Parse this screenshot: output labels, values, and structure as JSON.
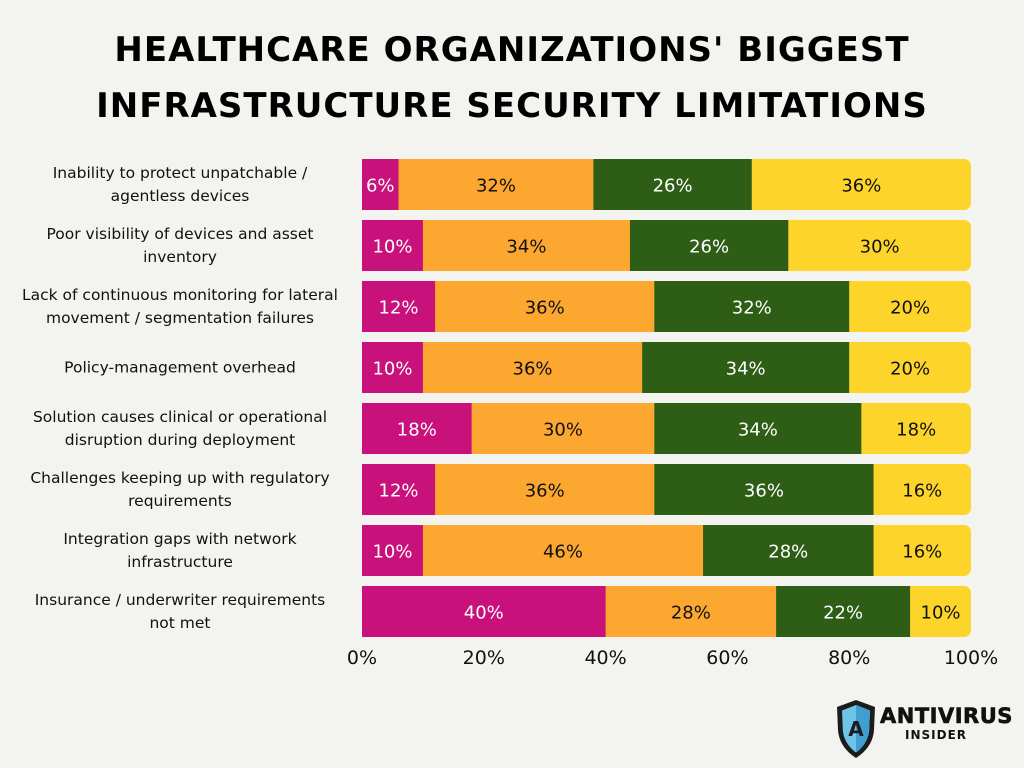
{
  "title": {
    "line1": "HEALTHCARE ORGANIZATIONS' BIGGEST",
    "line2": "INFRASTRUCTURE SECURITY LIMITATIONS"
  },
  "chart_data": {
    "type": "bar",
    "orientation": "horizontal",
    "stacked": true,
    "categories": [
      [
        "Inability to protect unpatchable /",
        "agentless devices"
      ],
      [
        "Poor visibility of devices and asset",
        "inventory"
      ],
      [
        "Lack of continuous monitoring for lateral",
        "movement / segmentation failures"
      ],
      [
        "Policy-management overhead"
      ],
      [
        "Solution causes clinical or operational",
        "disruption during deployment"
      ],
      [
        "Challenges keeping up with regulatory",
        "requirements"
      ],
      [
        "Integration gaps with network",
        "infrastructure"
      ],
      [
        "Insurance / underwriter requirements",
        "not met"
      ]
    ],
    "series": [
      {
        "values": [
          6,
          10,
          12,
          10,
          18,
          12,
          10,
          40
        ],
        "color": "#c8117a",
        "label_color": "#ffffff"
      },
      {
        "values": [
          32,
          34,
          36,
          36,
          30,
          36,
          46,
          28
        ],
        "color": "#fba730",
        "label_color": "#111111"
      },
      {
        "values": [
          26,
          26,
          32,
          34,
          34,
          36,
          28,
          22
        ],
        "color": "#2e5e16",
        "label_color": "#ffffff"
      },
      {
        "values": [
          36,
          30,
          20,
          20,
          18,
          16,
          16,
          10
        ],
        "color": "#fdd52a",
        "label_color": "#111111"
      }
    ],
    "value_suffix": "%",
    "xlim": [
      0,
      100
    ],
    "x_ticks": [
      "0%",
      "20%",
      "40%",
      "60%",
      "80%",
      "100%"
    ],
    "grid": false,
    "legend": "none"
  },
  "logo": {
    "line1": "ANTIVIRUS",
    "line2": "INSIDER",
    "shield_letter": "A"
  }
}
